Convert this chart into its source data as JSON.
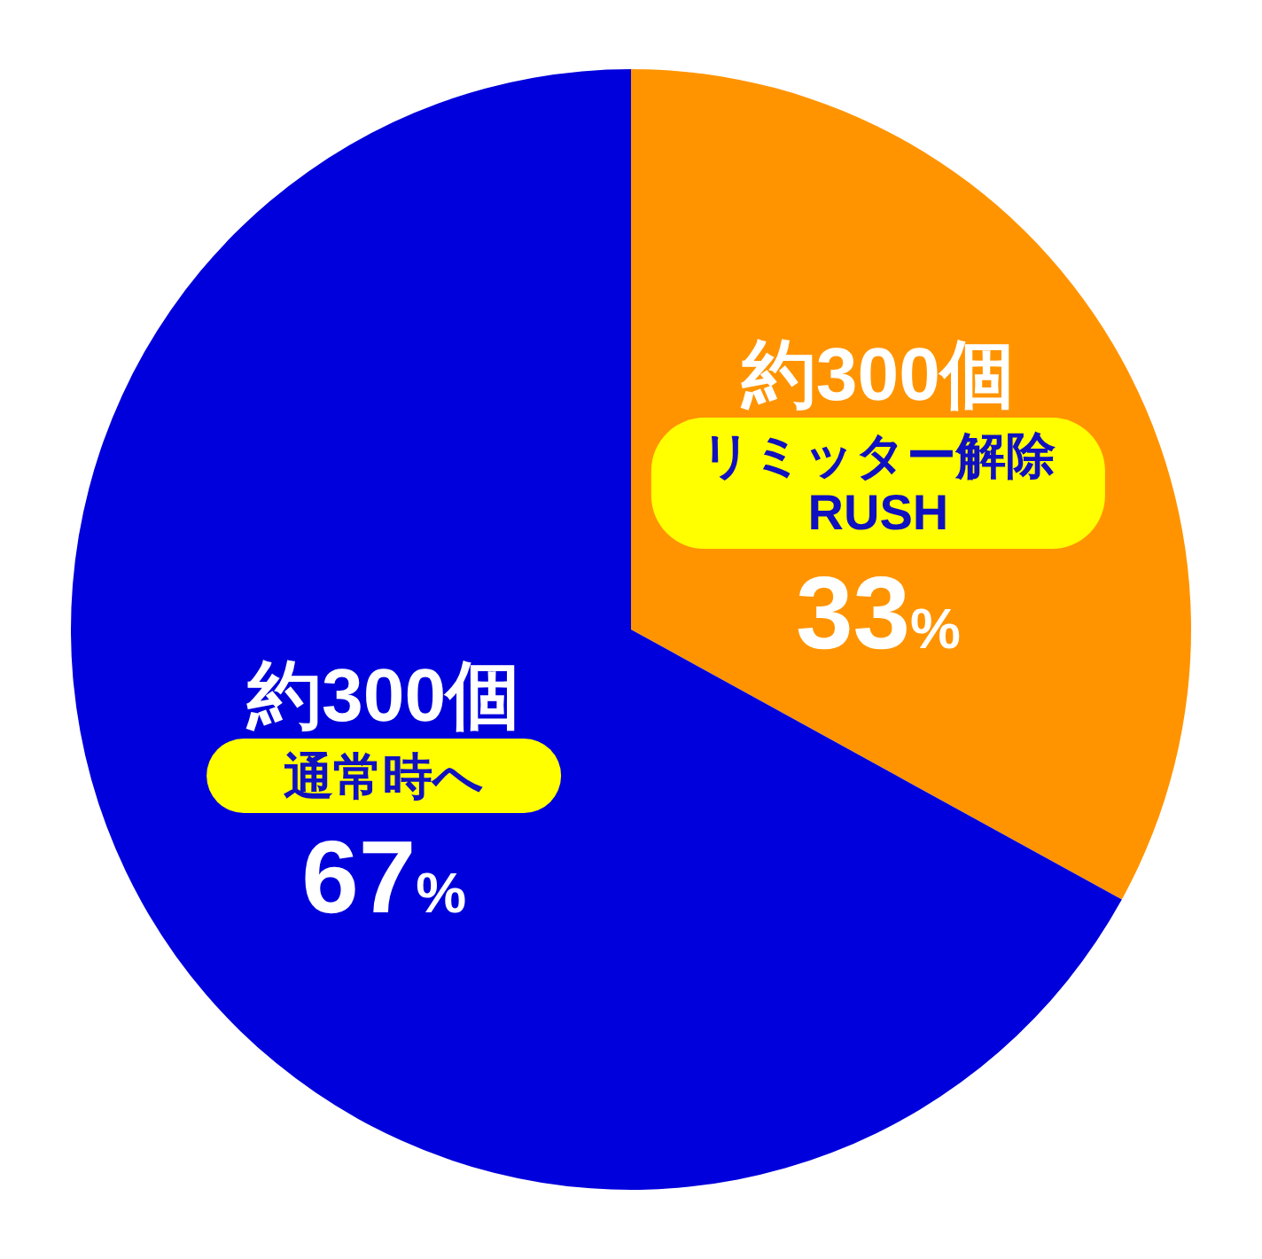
{
  "chart_data": {
    "type": "pie",
    "categories": [
      "リミッター解除\nRUSH",
      "通常時へ"
    ],
    "values": [
      33,
      67
    ],
    "colors": [
      "#ff9400",
      "#0000dc"
    ],
    "value_labels": [
      "33%",
      "67%"
    ],
    "annotations": [
      "約300個",
      "約300個"
    ]
  }
}
